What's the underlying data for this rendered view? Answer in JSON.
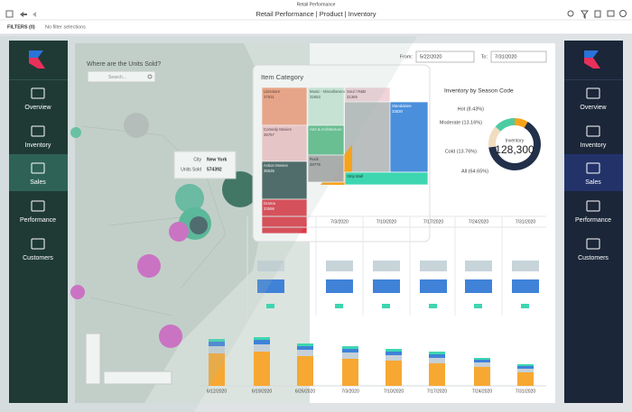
{
  "app_title": "Retail Performance",
  "header": {
    "breadcrumb": "Retail Performance | Product | Inventory"
  },
  "filters": {
    "label": "FILTERS (0)",
    "status": "No filter selections"
  },
  "nav": [
    "Overview",
    "Inventory",
    "Sales",
    "Performance",
    "Customers"
  ],
  "map": {
    "title": "Where are the Units Sold?",
    "search_placeholder": "Search...",
    "tooltip": {
      "city_label": "City",
      "city": "New York",
      "units_label": "Units Sold",
      "units": "574392"
    }
  },
  "item_category": {
    "title": "Item Category",
    "cells": [
      {
        "label": "Literature",
        "value": "37531"
      },
      {
        "label": "Music - Miscellaneous",
        "value": "32553"
      },
      {
        "label": "Soul / R&B",
        "value": "31365"
      },
      {
        "label": "Standalone",
        "value": "33530"
      },
      {
        "label": "Comedy Movies",
        "value": "35757"
      },
      {
        "label": "Arts & Architecture"
      },
      {
        "label": "Rock",
        "value": "28776"
      },
      {
        "label": "Action Movies",
        "value": "35535"
      },
      {
        "label": "Drama",
        "value": "33596"
      },
      {
        "label": "Strip Mall"
      }
    ]
  },
  "date_range": {
    "from_label": "From:",
    "from": "5/22/2020",
    "to_label": "To:",
    "to": "7/31/2020"
  },
  "season": {
    "title": "Inventory by Season Code",
    "center_label": "Inventory",
    "center_value": "128,300",
    "segments": [
      {
        "label": "Hot (8.43%)",
        "value": 8.43,
        "color": "#f7a21b"
      },
      {
        "label": "Moderate (13.16%)",
        "value": 13.16,
        "color": "#4ccba3"
      },
      {
        "label": "Cold (13.76%)",
        "value": 13.76,
        "color": "#f1dcc0"
      },
      {
        "label": "All (64.65%)",
        "value": 64.65,
        "color": "#22304a"
      }
    ]
  },
  "weekly_dates": [
    "7/3/2020",
    "7/10/2020",
    "7/17/2020",
    "7/24/2020",
    "7/31/2020"
  ],
  "sales_bars": {
    "dates": [
      "6/12/2020",
      "6/19/2020",
      "6/26/2020",
      "7/3/2020",
      "7/10/2020",
      "7/17/2020",
      "7/24/2020",
      "7/31/2020"
    ],
    "series": [
      {
        "color": "#f7a832",
        "values": [
          36,
          38,
          33,
          30,
          28,
          25,
          21,
          15
        ]
      },
      {
        "color": "#c5d0d8",
        "values": [
          8,
          8,
          7,
          7,
          6,
          6,
          5,
          4
        ]
      },
      {
        "color": "#3f82d8",
        "values": [
          5,
          5,
          4,
          4,
          4,
          4,
          3,
          3
        ]
      },
      {
        "color": "#3dd6b0",
        "values": [
          3,
          3,
          3,
          3,
          3,
          3,
          2,
          2
        ]
      }
    ]
  }
}
